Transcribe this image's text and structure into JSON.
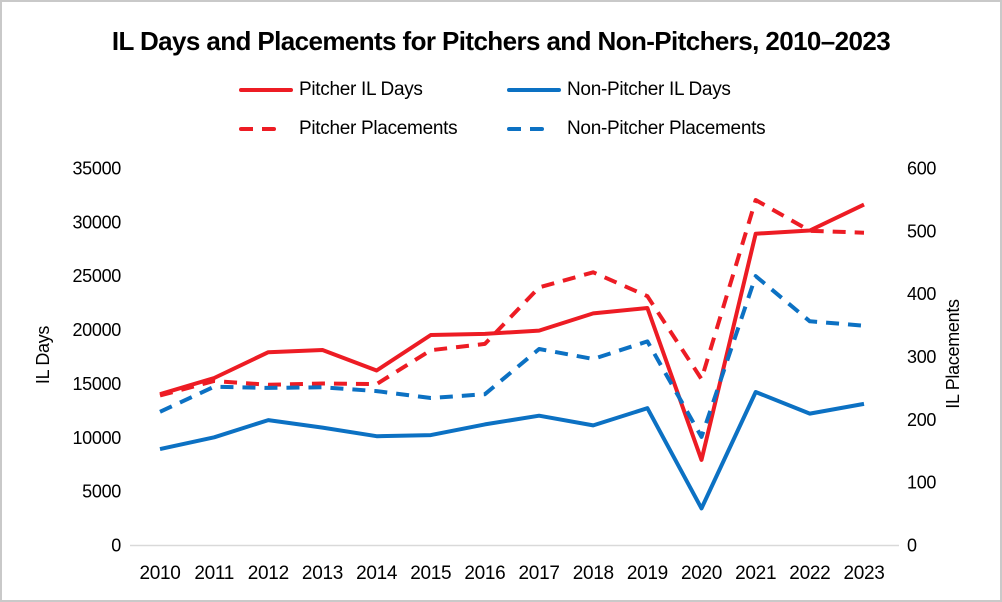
{
  "title": "IL Days and Placements for Pitchers and Non-Pitchers, 2010–2023",
  "colors": {
    "pitcher_red": "#ED1C24",
    "non_pitcher_blue": "#0C71C3",
    "axis_line": "#D9D9D9",
    "text": "#000000"
  },
  "chart_data": {
    "type": "line",
    "title": "IL Days and Placements for Pitchers and Non-Pitchers, 2010–2023",
    "categories": [
      "2010",
      "2011",
      "2012",
      "2013",
      "2014",
      "2015",
      "2016",
      "2017",
      "2018",
      "2019",
      "2020",
      "2021",
      "2022",
      "2023"
    ],
    "left_axis": {
      "label": "IL Days",
      "min": 0,
      "max": 35000,
      "tick_step": 5000,
      "ticks": [
        0,
        5000,
        10000,
        15000,
        20000,
        25000,
        30000,
        35000
      ]
    },
    "right_axis": {
      "label": "IL Placements",
      "min": 0,
      "max": 600,
      "tick_step": 100,
      "ticks": [
        0,
        100,
        200,
        300,
        400,
        500,
        600
      ]
    },
    "grid": false,
    "legend_position": "top",
    "series": [
      {
        "name": "Pitcher IL Days",
        "axis": "left",
        "style": "solid",
        "color": "#ED1C24",
        "values": [
          14000,
          15500,
          17900,
          18100,
          16200,
          19500,
          19600,
          19900,
          21500,
          22000,
          7900,
          28900,
          29200,
          31600
        ]
      },
      {
        "name": "Non-Pitcher IL Days",
        "axis": "left",
        "style": "solid",
        "color": "#0C71C3",
        "values": [
          8900,
          10000,
          11600,
          10900,
          10100,
          10200,
          11200,
          12000,
          11100,
          12700,
          3400,
          14200,
          12200,
          13100
        ]
      },
      {
        "name": "Pitcher Placements",
        "axis": "right",
        "style": "dashed",
        "color": "#ED1C24",
        "values": [
          238,
          261,
          255,
          257,
          256,
          310,
          320,
          410,
          434,
          396,
          264,
          549,
          500,
          497
        ]
      },
      {
        "name": "Non-Pitcher Placements",
        "axis": "right",
        "style": "dashed",
        "color": "#0C71C3",
        "values": [
          212,
          252,
          250,
          251,
          245,
          234,
          240,
          312,
          296,
          324,
          172,
          428,
          356,
          349
        ]
      }
    ]
  }
}
